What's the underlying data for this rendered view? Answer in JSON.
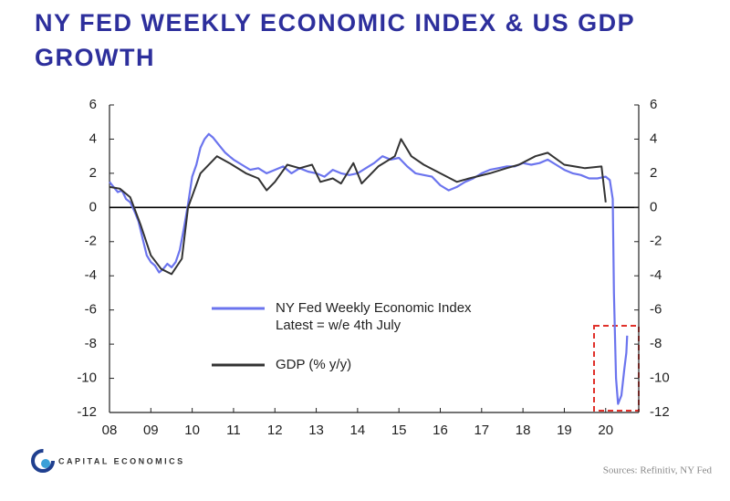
{
  "chart_data": {
    "type": "line",
    "title": "NY FED WEEKLY ECONOMIC INDEX & US GDP GROWTH",
    "xlim": [
      2008,
      2020.8
    ],
    "xticks": [
      {
        "value": 2008,
        "label": "08"
      },
      {
        "value": 2009,
        "label": "09"
      },
      {
        "value": 2010,
        "label": "10"
      },
      {
        "value": 2011,
        "label": "11"
      },
      {
        "value": 2012,
        "label": "12"
      },
      {
        "value": 2013,
        "label": "13"
      },
      {
        "value": 2014,
        "label": "14"
      },
      {
        "value": 2015,
        "label": "15"
      },
      {
        "value": 2016,
        "label": "16"
      },
      {
        "value": 2017,
        "label": "17"
      },
      {
        "value": 2018,
        "label": "18"
      },
      {
        "value": 2019,
        "label": "19"
      },
      {
        "value": 2020,
        "label": "20"
      }
    ],
    "ylim": [
      -12,
      6
    ],
    "yticks": [
      -12,
      -10,
      -8,
      -6,
      -4,
      -2,
      0,
      2,
      4,
      6
    ],
    "y2lim": [
      -12,
      6
    ],
    "y2ticks": [
      -12,
      -10,
      -8,
      -6,
      -4,
      -2,
      0,
      2,
      4,
      6
    ],
    "series": [
      {
        "name": "NY Fed Weekly Economic Index",
        "color": "#6b74ee",
        "x": [
          2008.0,
          2008.1,
          2008.2,
          2008.3,
          2008.4,
          2008.5,
          2008.6,
          2008.7,
          2008.8,
          2008.9,
          2009.0,
          2009.1,
          2009.2,
          2009.3,
          2009.4,
          2009.5,
          2009.6,
          2009.7,
          2009.8,
          2009.9,
          2010.0,
          2010.1,
          2010.2,
          2010.3,
          2010.4,
          2010.5,
          2010.6,
          2010.7,
          2010.8,
          2010.9,
          2011.0,
          2011.2,
          2011.4,
          2011.6,
          2011.8,
          2012.0,
          2012.2,
          2012.4,
          2012.6,
          2012.8,
          2013.0,
          2013.2,
          2013.4,
          2013.6,
          2013.8,
          2014.0,
          2014.2,
          2014.4,
          2014.6,
          2014.8,
          2015.0,
          2015.2,
          2015.4,
          2015.6,
          2015.8,
          2016.0,
          2016.2,
          2016.4,
          2016.6,
          2016.8,
          2017.0,
          2017.2,
          2017.4,
          2017.6,
          2017.8,
          2018.0,
          2018.2,
          2018.4,
          2018.6,
          2018.8,
          2019.0,
          2019.2,
          2019.4,
          2019.6,
          2019.8,
          2020.0,
          2020.1,
          2020.17,
          2020.2,
          2020.25,
          2020.3,
          2020.38,
          2020.45,
          2020.5,
          2020.52
        ],
        "values": [
          1.5,
          1.2,
          0.9,
          1.0,
          0.5,
          0.3,
          -0.2,
          -0.8,
          -1.8,
          -2.8,
          -3.2,
          -3.4,
          -3.8,
          -3.6,
          -3.3,
          -3.5,
          -3.2,
          -2.5,
          -1.2,
          0.2,
          1.8,
          2.5,
          3.5,
          4.0,
          4.3,
          4.1,
          3.8,
          3.5,
          3.2,
          3.0,
          2.8,
          2.5,
          2.2,
          2.3,
          2.0,
          2.2,
          2.4,
          2.0,
          2.3,
          2.1,
          2.0,
          1.8,
          2.2,
          2.0,
          1.9,
          2.0,
          2.3,
          2.6,
          3.0,
          2.8,
          2.9,
          2.4,
          2.0,
          1.9,
          1.8,
          1.3,
          1.0,
          1.2,
          1.5,
          1.7,
          2.0,
          2.2,
          2.3,
          2.4,
          2.4,
          2.6,
          2.5,
          2.6,
          2.8,
          2.5,
          2.2,
          2.0,
          1.9,
          1.7,
          1.7,
          1.8,
          1.6,
          0.5,
          -5,
          -10,
          -11.5,
          -11.0,
          -9.5,
          -8.5,
          -7.5
        ]
      },
      {
        "name": "GDP (% y/y)",
        "color": "#333333",
        "x": [
          2008.0,
          2008.25,
          2008.5,
          2008.75,
          2009.0,
          2009.25,
          2009.5,
          2009.75,
          2009.9,
          2010.2,
          2010.6,
          2010.9,
          2011.3,
          2011.6,
          2011.8,
          2012.0,
          2012.3,
          2012.6,
          2012.9,
          2013.1,
          2013.4,
          2013.6,
          2013.9,
          2014.1,
          2014.5,
          2014.9,
          2015.05,
          2015.3,
          2015.6,
          2016.0,
          2016.4,
          2016.7,
          2017.2,
          2017.6,
          2017.9,
          2018.3,
          2018.6,
          2019.0,
          2019.5,
          2019.9,
          2020.0
        ],
        "values": [
          1.2,
          1.1,
          0.6,
          -1.0,
          -2.8,
          -3.6,
          -3.9,
          -3.0,
          0.0,
          2.0,
          3.0,
          2.6,
          2.0,
          1.7,
          1.0,
          1.5,
          2.5,
          2.3,
          2.5,
          1.5,
          1.7,
          1.4,
          2.6,
          1.4,
          2.4,
          3.0,
          4.0,
          3.0,
          2.5,
          2.0,
          1.5,
          1.7,
          2.0,
          2.3,
          2.5,
          3.0,
          3.2,
          2.5,
          2.3,
          2.4,
          0.3
        ]
      }
    ],
    "annotations": [
      "Latest = w/e 4th July"
    ],
    "source": "Sources: Refinitiv, NY Fed",
    "brand": "CAPITAL ECONOMICS"
  }
}
